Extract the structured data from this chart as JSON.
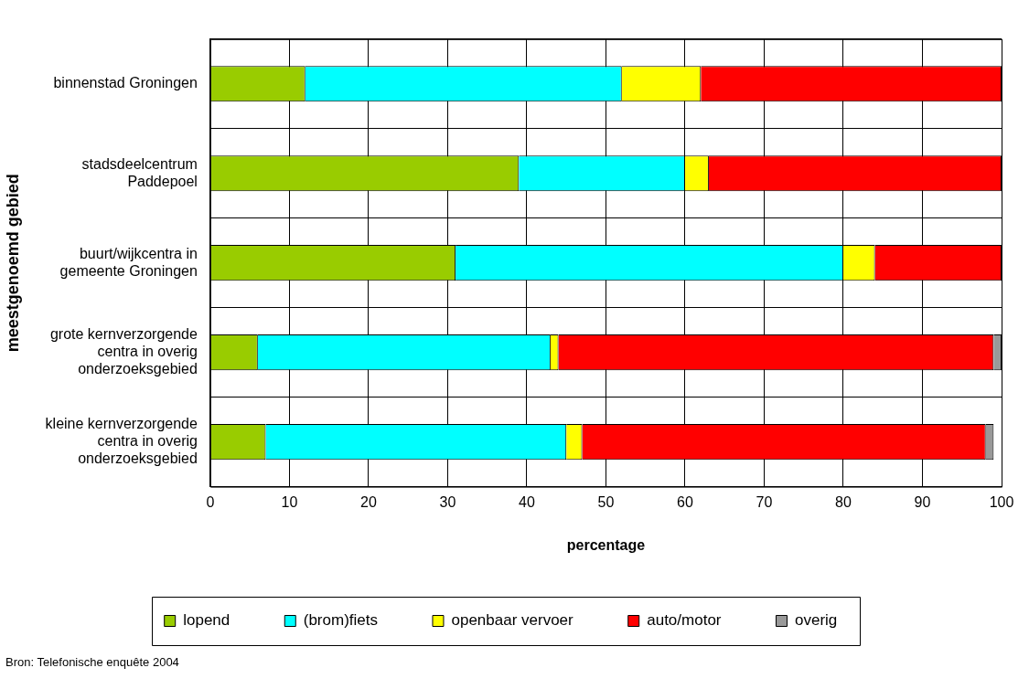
{
  "chart_data": {
    "type": "bar",
    "orientation": "horizontal",
    "stacked": true,
    "xlabel": "percentage",
    "ylabel": "meestgenoemd gebied",
    "categories": [
      "binnenstad Groningen",
      "stadsdeelcentrum Paddepoel",
      "buurt/wijkcentra in gemeente Groningen",
      "grote kernverzorgende centra in overig onderzoeksgebied",
      "kleine kernverzorgende centra in overig onderzoeksgebied"
    ],
    "series": [
      {
        "name": "lopend",
        "color": "#99cc00",
        "values": [
          12,
          39,
          31,
          6,
          7
        ]
      },
      {
        "name": "(brom)fiets",
        "color": "#00ffff",
        "values": [
          40,
          21,
          49,
          37,
          38
        ]
      },
      {
        "name": "openbaar vervoer",
        "color": "#ffff00",
        "values": [
          10,
          3,
          4,
          1,
          2
        ]
      },
      {
        "name": "auto/motor",
        "color": "#ff0000",
        "values": [
          38,
          37,
          16,
          55,
          51
        ]
      },
      {
        "name": "overig",
        "color": "#999999",
        "values": [
          0,
          0,
          0,
          1,
          1
        ]
      }
    ],
    "xlim": [
      0,
      100
    ],
    "xticks": [
      0,
      10,
      20,
      30,
      40,
      50,
      60,
      70,
      80,
      90,
      100
    ],
    "grid": true,
    "legend": "bottom",
    "annotations": [
      "Bron: Telefonische enquête 2004"
    ]
  }
}
